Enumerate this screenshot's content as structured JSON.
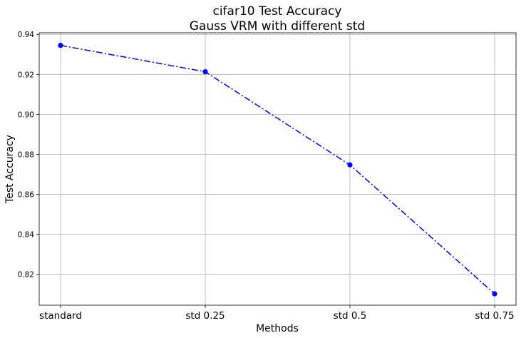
{
  "chart_data": {
    "type": "line",
    "title": "cifar10 Test Accuracy",
    "subtitle": "Gauss VRM with different std",
    "xlabel": "Methods",
    "ylabel": "Test Accuracy",
    "categories": [
      "standard",
      "std 0.25",
      "std 0.5",
      "std 0.75"
    ],
    "series": [
      {
        "values": [
          0.9345,
          0.9213,
          0.8747,
          0.8102
        ],
        "color": "#0000ff",
        "line_style": "dash-dot",
        "marker": "circle"
      }
    ],
    "ylim": [
      0.8045,
      0.9408
    ],
    "yticks": [
      0.82,
      0.84,
      0.86,
      0.88,
      0.9,
      0.92,
      0.94
    ],
    "ytick_labels": [
      "0.82",
      "0.84",
      "0.86",
      "0.88",
      "0.90",
      "0.92",
      "0.94"
    ],
    "grid": true
  }
}
